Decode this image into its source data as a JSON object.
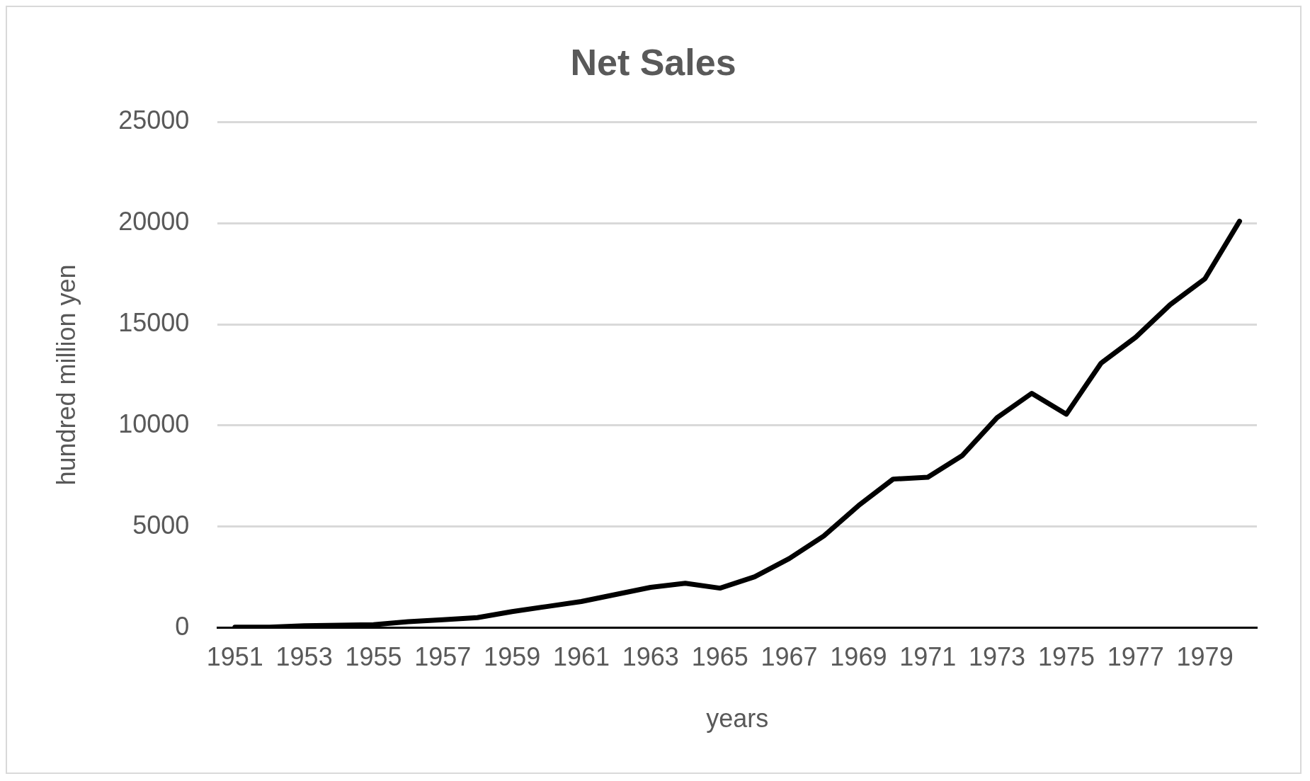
{
  "chart_data": {
    "type": "line",
    "title": "Net Sales",
    "xlabel": "years",
    "ylabel": "hundred million yen",
    "categories": [
      "1951",
      null,
      "1953",
      null,
      "1955",
      null,
      "1957",
      null,
      "1959",
      null,
      "1961",
      null,
      "1963",
      null,
      "1965",
      null,
      "1967",
      null,
      "1969",
      null,
      "1971",
      null,
      "1973",
      null,
      "1975",
      null,
      "1977",
      null,
      "1979",
      null
    ],
    "series": [
      {
        "color": "#000000",
        "values": [
          30,
          30,
          100,
          130,
          150,
          300,
          400,
          500,
          800,
          1050,
          1300,
          1650,
          2000,
          2200,
          1960,
          2520,
          3420,
          4540,
          6040,
          7350,
          7440,
          8520,
          10390,
          11590,
          10560,
          13080,
          14360,
          15980,
          17250,
          20100
        ]
      }
    ],
    "ylim": [
      0,
      25000
    ],
    "yticks": [
      0,
      5000,
      10000,
      15000,
      20000,
      25000
    ],
    "grid": "y",
    "marker": "none",
    "line_style": "solid"
  }
}
